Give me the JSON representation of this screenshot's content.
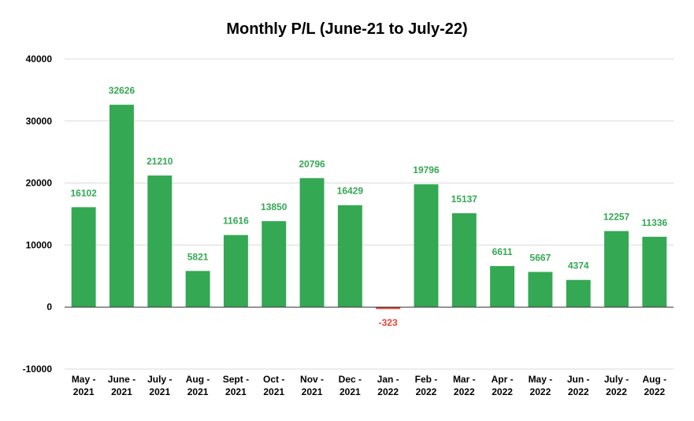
{
  "chart_data": {
    "type": "bar",
    "title": "Monthly P/L (June-21 to July-22)",
    "xlabel": "",
    "ylabel": "",
    "ylim": [
      -10000,
      40000
    ],
    "yticks": [
      -10000,
      0,
      10000,
      20000,
      30000,
      40000
    ],
    "ytick_labels": [
      "-10000",
      "0",
      "10000",
      "20000",
      "30000",
      "40000"
    ],
    "grid": true,
    "legend": "none",
    "categories": [
      [
        "May -",
        "2021"
      ],
      [
        "June -",
        "2021"
      ],
      [
        "July -",
        "2021"
      ],
      [
        "Aug -",
        "2021"
      ],
      [
        "Sept -",
        "2021"
      ],
      [
        "Oct -",
        "2021"
      ],
      [
        "Nov -",
        "2021"
      ],
      [
        "Dec -",
        "2021"
      ],
      [
        "Jan -",
        "2022"
      ],
      [
        "Feb -",
        "2022"
      ],
      [
        "Mar -",
        "2022"
      ],
      [
        "Apr -",
        "2022"
      ],
      [
        "May -",
        "2022"
      ],
      [
        "Jun -",
        "2022"
      ],
      [
        "July -",
        "2022"
      ],
      [
        "Aug -",
        "2022"
      ]
    ],
    "values": [
      16102,
      32626,
      21210,
      5821,
      11616,
      13850,
      20796,
      16429,
      -323,
      19796,
      15137,
      6611,
      5667,
      4374,
      12257,
      11336
    ],
    "data_labels": [
      "16102",
      "32626",
      "21210",
      "5821",
      "11616",
      "13850",
      "20796",
      "16429",
      "-323",
      "19796",
      "15137",
      "6611",
      "5667",
      "4374",
      "12257",
      "11336"
    ],
    "colors": {
      "positive": "#34a853",
      "negative": "#ea4335",
      "grid": "#d9d9d9",
      "axis": "#333333"
    }
  }
}
